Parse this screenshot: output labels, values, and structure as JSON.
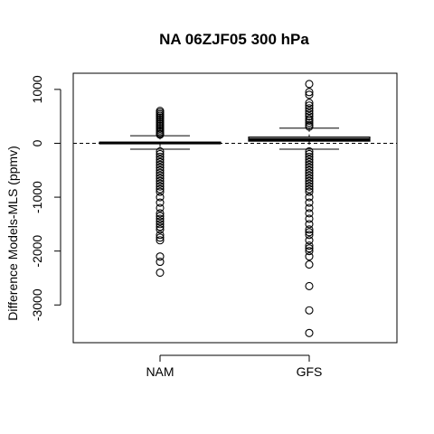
{
  "chart_data": {
    "type": "boxplot",
    "title": "NA 06ZJF05 300 hPa",
    "xlabel": "",
    "ylabel": "Difference Models-MLS (ppmv)",
    "categories": [
      "NAM",
      "GFS"
    ],
    "ylim": [
      -3700,
      1300
    ],
    "yticks": [
      -3000,
      -2000,
      -1000,
      0,
      1000
    ],
    "reference_line": 0,
    "series": [
      {
        "category": "NAM",
        "lower_whisker": -110,
        "q1": -5,
        "median": 5,
        "q3": 20,
        "upper_whisker": 140,
        "outliers": [
          600,
          570,
          540,
          510,
          480,
          450,
          420,
          390,
          360,
          330,
          300,
          270,
          240,
          210,
          180,
          160,
          -150,
          -200,
          -250,
          -300,
          -350,
          -400,
          -450,
          -500,
          -550,
          -600,
          -650,
          -700,
          -750,
          -800,
          -850,
          -900,
          -1000,
          -1100,
          -1200,
          -1300,
          -1350,
          -1400,
          -1450,
          -1500,
          -1550,
          -1600,
          -1700,
          -1750,
          -1800,
          -2100,
          -2200,
          -2400
        ]
      },
      {
        "category": "GFS",
        "lower_whisker": -110,
        "q1": 40,
        "median": 70,
        "q3": 115,
        "upper_whisker": 280,
        "outliers": [
          1100,
          950,
          900,
          750,
          700,
          650,
          600,
          550,
          500,
          450,
          420,
          380,
          340,
          310,
          -150,
          -200,
          -250,
          -300,
          -350,
          -400,
          -450,
          -500,
          -550,
          -600,
          -650,
          -700,
          -750,
          -800,
          -850,
          -900,
          -1000,
          -1100,
          -1200,
          -1300,
          -1400,
          -1500,
          -1600,
          -1650,
          -1700,
          -1800,
          -1900,
          -1950,
          -2000,
          -2100,
          -2250,
          -2650,
          -3100,
          -3520
        ]
      }
    ]
  }
}
